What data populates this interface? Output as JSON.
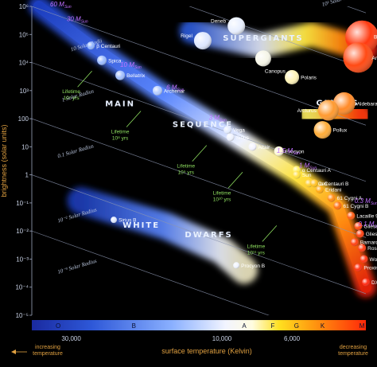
{
  "chart_data": {
    "type": "scatter",
    "title": "",
    "xlabel": "surface temperature (Kelvin)",
    "ylabel": "brightness (solar units)",
    "x_scale": "log-reversed",
    "y_scale": "log",
    "xlim": [
      3500,
      40000
    ],
    "ylim": [
      1e-05,
      1000000
    ],
    "y_ticks": [
      "10⁶",
      "10⁵",
      "10⁴",
      "10³",
      "100",
      "10",
      "1",
      "10⁻¹",
      "10⁻²",
      "10⁻³",
      "10⁻⁴",
      "10⁻⁵"
    ],
    "y_tick_values": [
      1000000,
      100000,
      10000,
      1000,
      100,
      10,
      1,
      0.1,
      0.01,
      0.001,
      0.0001,
      1e-05
    ],
    "x_ticks": [
      {
        "label": "30,000",
        "value": 30000
      },
      {
        "label": "10,000",
        "value": 10000
      },
      {
        "label": "6,000",
        "value": 6000
      },
      {
        "label": "3,000",
        "value": 3000
      }
    ],
    "left_note": [
      "increasing",
      "temperature"
    ],
    "right_note": [
      "decreasing",
      "temperature"
    ],
    "spectral_classes": [
      {
        "label": "O",
        "temp": 33000
      },
      {
        "label": "B",
        "temp": 19000
      },
      {
        "label": "A",
        "temp": 8500
      },
      {
        "label": "F",
        "temp": 6900
      },
      {
        "label": "G",
        "temp": 5800
      },
      {
        "label": "K",
        "temp": 4800
      },
      {
        "label": "M",
        "temp": 3600
      }
    ],
    "regions": [
      {
        "label": "SUPERGIANTS",
        "temp": 7400,
        "lum": 60000
      },
      {
        "label": "GIANTS",
        "temp": 4300,
        "lum": 300
      },
      {
        "label": "MAIN",
        "temp": 21000,
        "lum": 280
      },
      {
        "label": "SEQUENCE",
        "temp": 11500,
        "lum": 50
      },
      {
        "label": "WHITE",
        "temp": 18000,
        "lum": 0.013
      },
      {
        "label": "DWARFS",
        "temp": 11000,
        "lum": 0.006
      }
    ],
    "radius_lines": [
      {
        "label": "10³ Solar Radius",
        "lum_at_4000": 1000000.0
      },
      {
        "label": "10² Solar Radius",
        "lum_at_4000": 10000
      },
      {
        "label": "10 Solar Radii",
        "lum_at_4000": 100
      },
      {
        "label": "1 Solar Radius",
        "lum_at_4000": 1
      },
      {
        "label": "0.1 Solar Radius",
        "lum_at_4000": 0.01
      },
      {
        "label": "10⁻² Solar Radius",
        "lum_at_4000": 0.0001
      },
      {
        "label": "10⁻³ Solar Radius",
        "lum_at_4000": 1e-06
      }
    ],
    "radius_label_positions": [
      {
        "temp": 14500,
        "lum": 2500000
      },
      {
        "temp": 4800,
        "lum": 1000000
      },
      {
        "temp": 30000,
        "lum": 25000
      },
      {
        "temp": 32000,
        "lum": 400
      },
      {
        "temp": 33000,
        "lum": 4
      },
      {
        "temp": 33000,
        "lum": 0.02
      },
      {
        "temp": 33000,
        "lum": 0.0003
      }
    ],
    "stars": [
      {
        "name": "Deneb",
        "temp": 9000,
        "lum": 200000,
        "r": 11,
        "color": "#e9f0ff"
      },
      {
        "name": "Rigel",
        "temp": 11500,
        "lum": 60000,
        "r": 11,
        "color": "#dfe8ff"
      },
      {
        "name": "Betelgeuse",
        "temp": 3600,
        "lum": 80000,
        "r": 21,
        "color": "#ff3a10"
      },
      {
        "name": "Antares",
        "temp": 3700,
        "lum": 15000,
        "r": 19,
        "color": "#ff4a14"
      },
      {
        "name": "Canopus",
        "temp": 7400,
        "lum": 14000,
        "r": 10,
        "color": "#f6f6e8"
      },
      {
        "name": "Polaris",
        "temp": 6000,
        "lum": 3000,
        "r": 9,
        "color": "#fff4b8"
      },
      {
        "name": "Aldebaran",
        "temp": 4100,
        "lum": 350,
        "r": 14,
        "color": "#ff8a28"
      },
      {
        "name": "Arcturus",
        "temp": 4600,
        "lum": 200,
        "r": 13,
        "color": "#ff9a30"
      },
      {
        "name": "Pollux",
        "temp": 4800,
        "lum": 40,
        "r": 11,
        "color": "#ffac38"
      },
      {
        "name": "β Centauri",
        "temp": 26000,
        "lum": 40000,
        "r": 5,
        "color": "#90b4ff"
      },
      {
        "name": "Spica",
        "temp": 24000,
        "lum": 12000,
        "r": 6,
        "color": "#9cbcff"
      },
      {
        "name": "Bellatrix",
        "temp": 21000,
        "lum": 3500,
        "r": 6,
        "color": "#a4c0ff"
      },
      {
        "name": "Archenar",
        "temp": 16000,
        "lum": 1000,
        "r": 6,
        "color": "#b4ccff"
      },
      {
        "name": "Vega",
        "temp": 9600,
        "lum": 40,
        "r": 5,
        "color": "#e4ecff"
      },
      {
        "name": "Sirius",
        "temp": 9400,
        "lum": 22,
        "r": 5,
        "color": "#eef2ff"
      },
      {
        "name": "Altair",
        "temp": 8000,
        "lum": 10,
        "r": 5,
        "color": "#f4f4ff"
      },
      {
        "name": "Procyon",
        "temp": 6600,
        "lum": 7,
        "r": 6,
        "color": "#fffad8"
      },
      {
        "name": "α Centauri A",
        "temp": 5800,
        "lum": 1.5,
        "r": 5,
        "color": "#fff060"
      },
      {
        "name": "Sun",
        "temp": 5800,
        "lum": 1,
        "r": 5,
        "color": "#ffe040"
      },
      {
        "name": "τ Ceti",
        "temp": 5300,
        "lum": 0.5,
        "r": 5,
        "color": "#ffd030"
      },
      {
        "name": "α Centauri B",
        "temp": 5100,
        "lum": 0.5,
        "r": 5,
        "color": "#ffc020"
      },
      {
        "name": "Eridani",
        "temp": 4900,
        "lum": 0.3,
        "r": 5,
        "color": "#ffa810"
      },
      {
        "name": "61 Cygni A",
        "temp": 4500,
        "lum": 0.15,
        "r": 5,
        "color": "#ff8a10"
      },
      {
        "name": "61 Cygni B",
        "temp": 4300,
        "lum": 0.08,
        "r": 5,
        "color": "#ff7010"
      },
      {
        "name": "Lacaille 9352",
        "temp": 3900,
        "lum": 0.035,
        "r": 5,
        "color": "#ff5a10"
      },
      {
        "name": "Gliese 725 A",
        "temp": 3700,
        "lum": 0.015,
        "r": 5,
        "color": "#ff4a10"
      },
      {
        "name": "Gliese 725 B",
        "temp": 3650,
        "lum": 0.008,
        "r": 5,
        "color": "#ff4010"
      },
      {
        "name": "Barnard's Star",
        "temp": 3800,
        "lum": 0.004,
        "r": 5,
        "color": "#ff4010"
      },
      {
        "name": "Ross 128",
        "temp": 3600,
        "lum": 0.0025,
        "r": 5,
        "color": "#ff3a10"
      },
      {
        "name": "Wolf 359",
        "temp": 3550,
        "lum": 0.001,
        "r": 5,
        "color": "#ff3410"
      },
      {
        "name": "Proxima Centauri",
        "temp": 3700,
        "lum": 0.0005,
        "r": 5,
        "color": "#ff3010"
      },
      {
        "name": "DX Cancri",
        "temp": 3500,
        "lum": 0.00015,
        "r": 5,
        "color": "#ff2810"
      },
      {
        "name": "Sirius B",
        "temp": 22000,
        "lum": 0.025,
        "r": 4,
        "color": "#dfe8ff"
      },
      {
        "name": "Procyon B",
        "temp": 9000,
        "lum": 0.0006,
        "r": 4,
        "color": "#f0f4ff"
      }
    ],
    "masses": [
      {
        "label": "60 M",
        "sub": "Sun",
        "temp": 35000,
        "lum": 1000000
      },
      {
        "label": "30 M",
        "sub": "Sun",
        "temp": 31000,
        "lum": 300000
      },
      {
        "label": "10 M",
        "sub": "Sun",
        "temp": 21000,
        "lum": 7000
      },
      {
        "label": "6 M",
        "sub": "Sun",
        "temp": 15000,
        "lum": 1100
      },
      {
        "label": "3 M",
        "sub": "Sun",
        "temp": 11000,
        "lum": 90
      },
      {
        "label": "1.5 M",
        "sub": "Sun",
        "temp": 6700,
        "lum": 6
      },
      {
        "label": "1 M",
        "sub": "Sun",
        "temp": 5700,
        "lum": 1.8
      },
      {
        "label": "0.3 M",
        "sub": "Sun",
        "temp": 3800,
        "lum": 0.1
      },
      {
        "label": "0.1 M",
        "sub": "Sun",
        "temp": 3700,
        "lum": 0.015
      }
    ],
    "lifetimes": [
      {
        "label": "Lifetime",
        "exp": "10⁷ yrs",
        "temp": 30000,
        "lum": 800
      },
      {
        "label": "Lifetime",
        "exp": "10⁸ yrs",
        "temp": 21000,
        "lum": 30
      },
      {
        "label": "Lifetime",
        "exp": "10⁹ yrs",
        "temp": 13000,
        "lum": 1.8
      },
      {
        "label": "Lifetime",
        "exp": "10¹⁰ yrs",
        "temp": 10000,
        "lum": 0.2
      },
      {
        "label": "Lifetime",
        "exp": "10¹¹ yrs",
        "temp": 7800,
        "lum": 0.0025
      }
    ]
  }
}
